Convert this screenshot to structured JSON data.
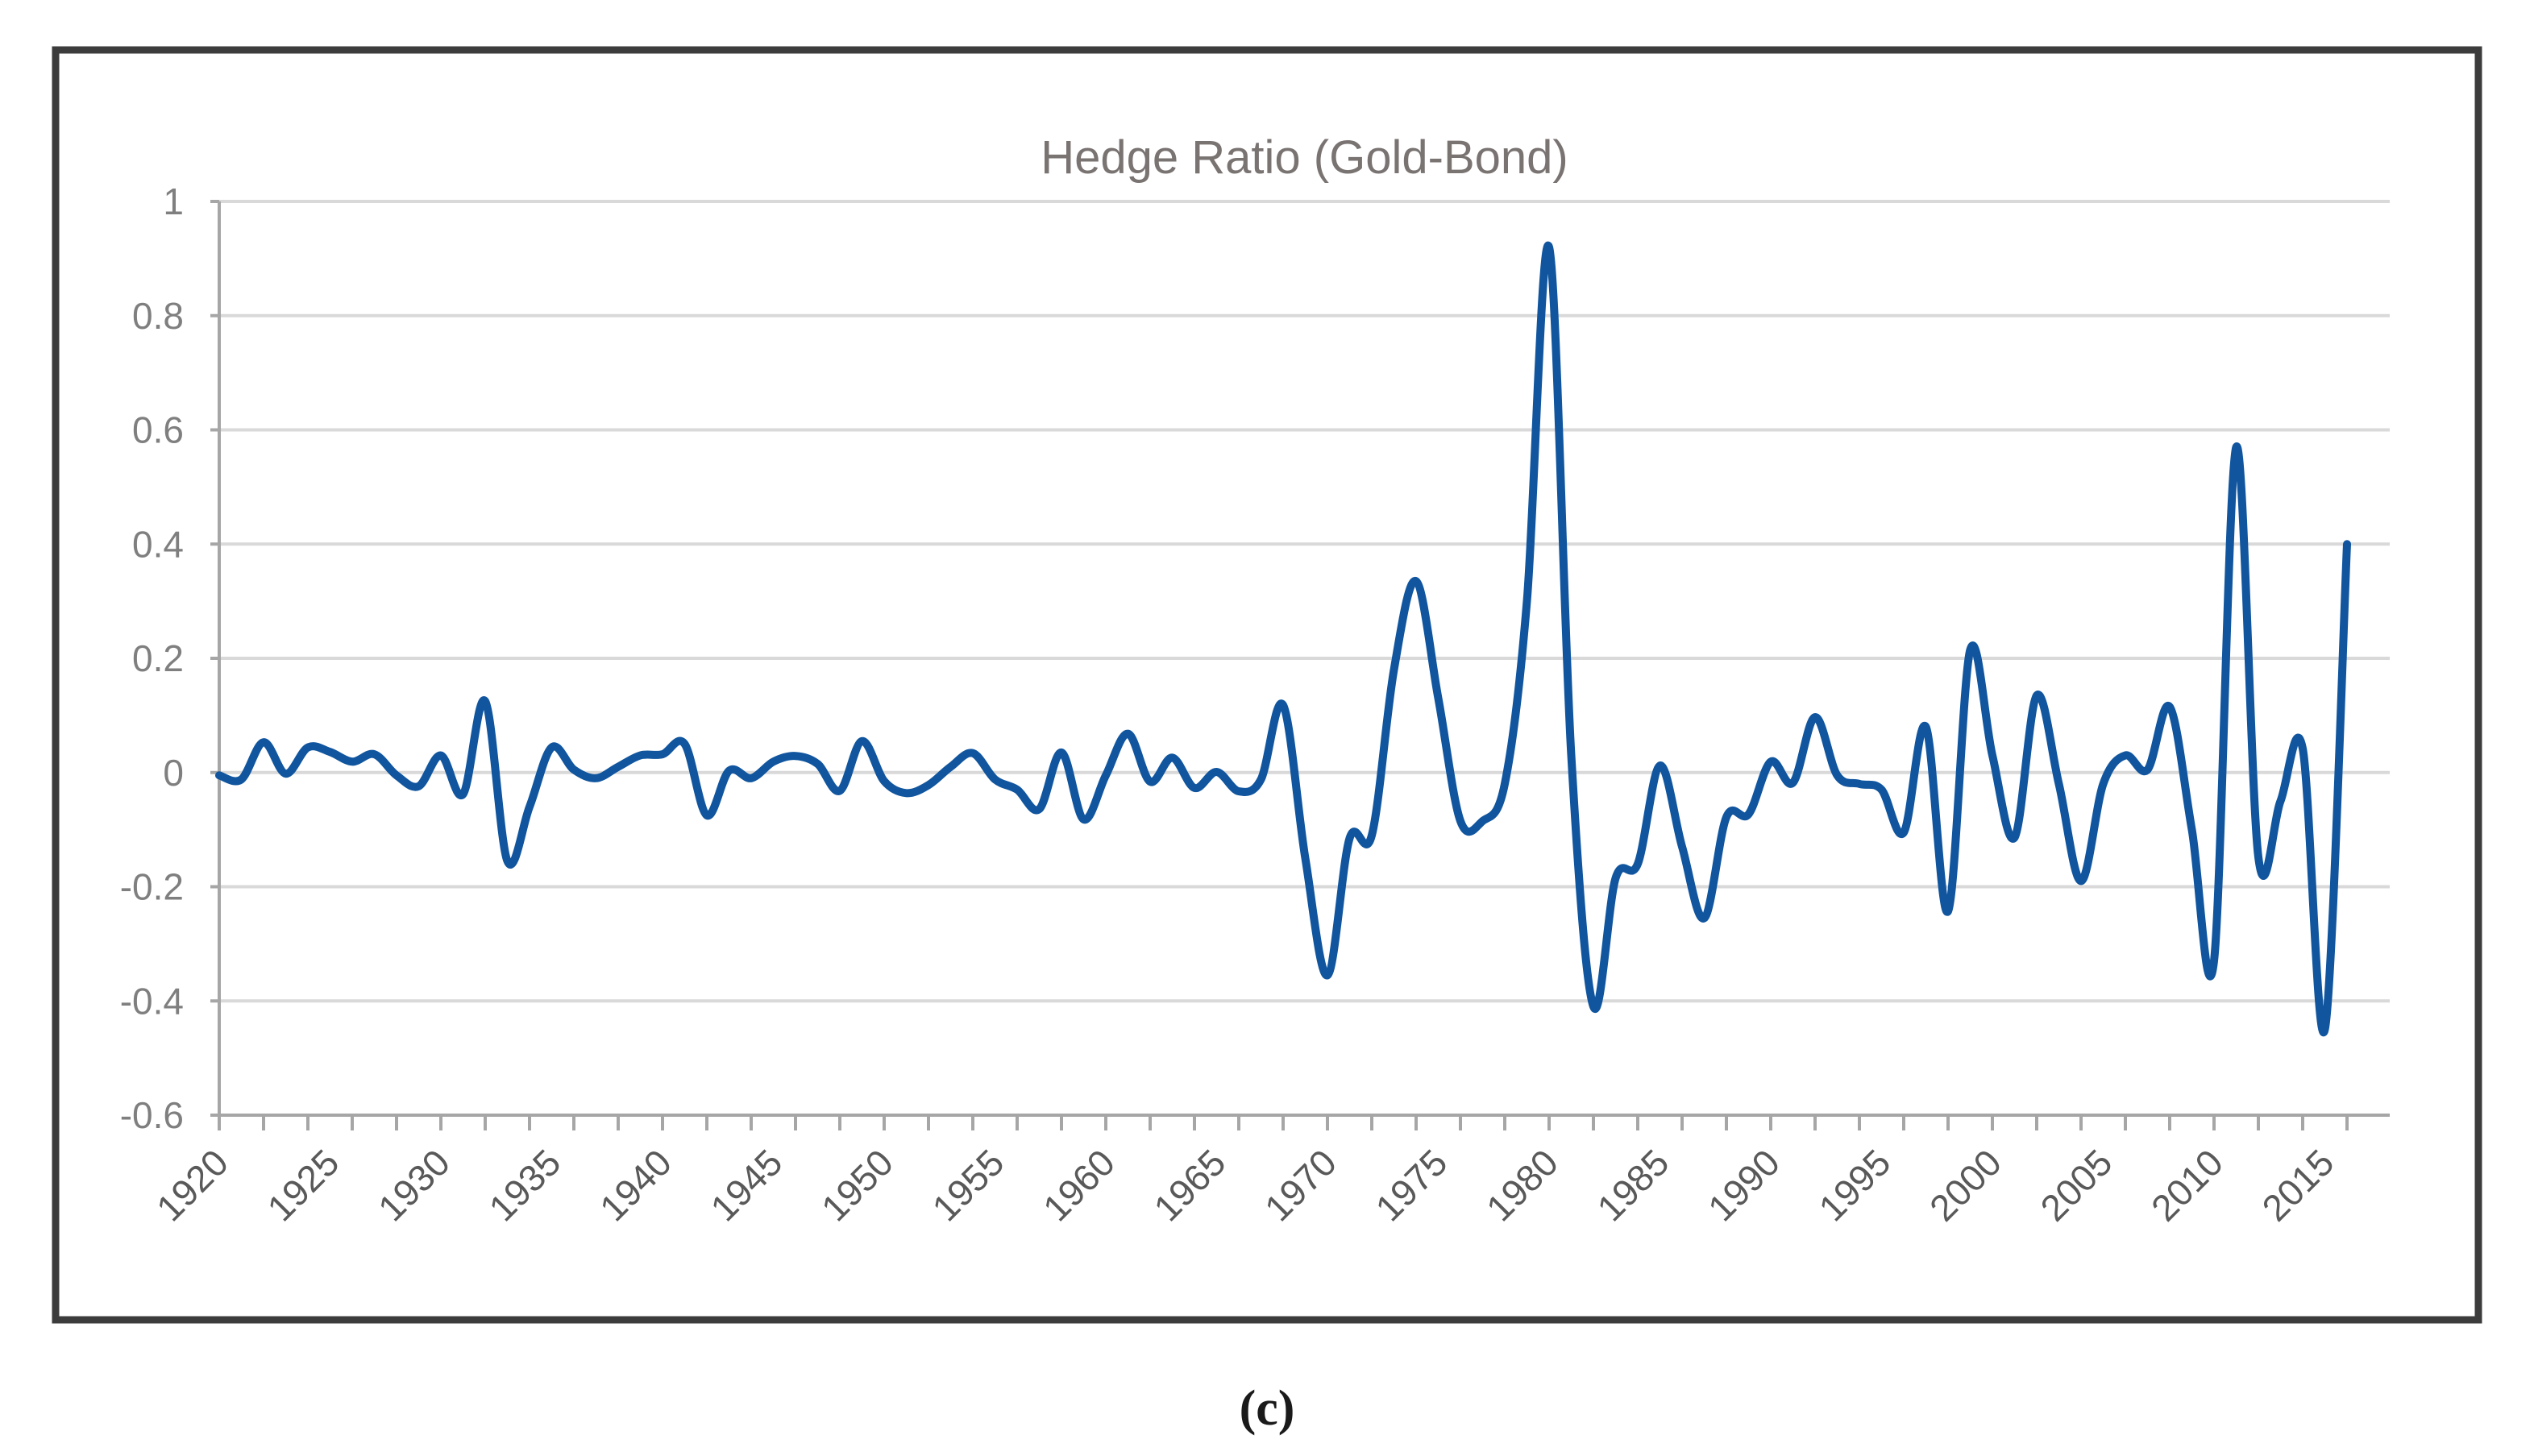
{
  "figure": {
    "caption": "(c)",
    "background_color": "#FFFFFF",
    "border_color": "#3C3C3C"
  },
  "chart_data": {
    "type": "line",
    "title": "Hedge Ratio (Gold-Bond)",
    "legend": "none",
    "grid": "horizontal",
    "smooth": true,
    "ylim": [
      -0.6,
      1
    ],
    "ytick_labels": [
      "1",
      "0.8",
      "0.6",
      "0.4",
      "0.2",
      "0",
      "-0.2",
      "-0.4",
      "-0.6"
    ],
    "ytick_values": [
      1,
      0.8,
      0.6,
      0.4,
      0.2,
      0,
      -0.2,
      -0.4,
      -0.6
    ],
    "x_start": 1920,
    "x_step": 1,
    "x_end": 2016,
    "xtick_labels": [
      "1920",
      "1925",
      "1930",
      "1935",
      "1940",
      "1945",
      "1950",
      "1955",
      "1960",
      "1965",
      "1970",
      "1975",
      "1980",
      "1985",
      "1990",
      "1995",
      "2000",
      "2005",
      "2010",
      "2015"
    ],
    "xtick_label_interval_years": 5,
    "xtick_minor_interval_years": 2,
    "series": [
      {
        "name": "Hedge Ratio (Gold-Bond)",
        "color": "#10559E",
        "values": [
          -0.005,
          -0.012,
          0.053,
          -0.002,
          0.044,
          0.036,
          0.019,
          0.032,
          -0.005,
          -0.024,
          0.03,
          -0.038,
          0.125,
          -0.155,
          -0.06,
          0.044,
          0.005,
          -0.01,
          0.01,
          0.03,
          0.032,
          0.05,
          -0.075,
          0.003,
          -0.01,
          0.019,
          0.029,
          0.015,
          -0.032,
          0.055,
          -0.015,
          -0.036,
          -0.022,
          0.01,
          0.034,
          -0.012,
          -0.03,
          -0.064,
          0.035,
          -0.082,
          -0.005,
          0.068,
          -0.016,
          0.026,
          -0.027,
          0.001,
          -0.033,
          -0.012,
          0.118,
          -0.15,
          -0.355,
          -0.115,
          -0.11,
          0.18,
          0.335,
          0.13,
          -0.085,
          -0.085,
          -0.02,
          0.3,
          0.92,
          0.03,
          -0.41,
          -0.185,
          -0.16,
          0.012,
          -0.13,
          -0.255,
          -0.078,
          -0.073,
          0.019,
          -0.018,
          0.097,
          -0.005,
          -0.02,
          -0.03,
          -0.105,
          0.08,
          -0.243,
          0.215,
          0.03,
          -0.114,
          0.135,
          -0.02,
          -0.19,
          -0.02,
          0.03,
          0.005,
          0.115,
          -0.1,
          -0.33,
          0.57,
          -0.148,
          -0.05,
          0.042,
          -0.45,
          0.4
        ]
      }
    ],
    "colors": {
      "grid": "#D9D9D9",
      "axis": "#A6A6A6",
      "ytick_text": "#7F7F7F",
      "xtick_text": "#595959",
      "title_text": "#797372",
      "caption_text": "#1A1A1A"
    }
  }
}
